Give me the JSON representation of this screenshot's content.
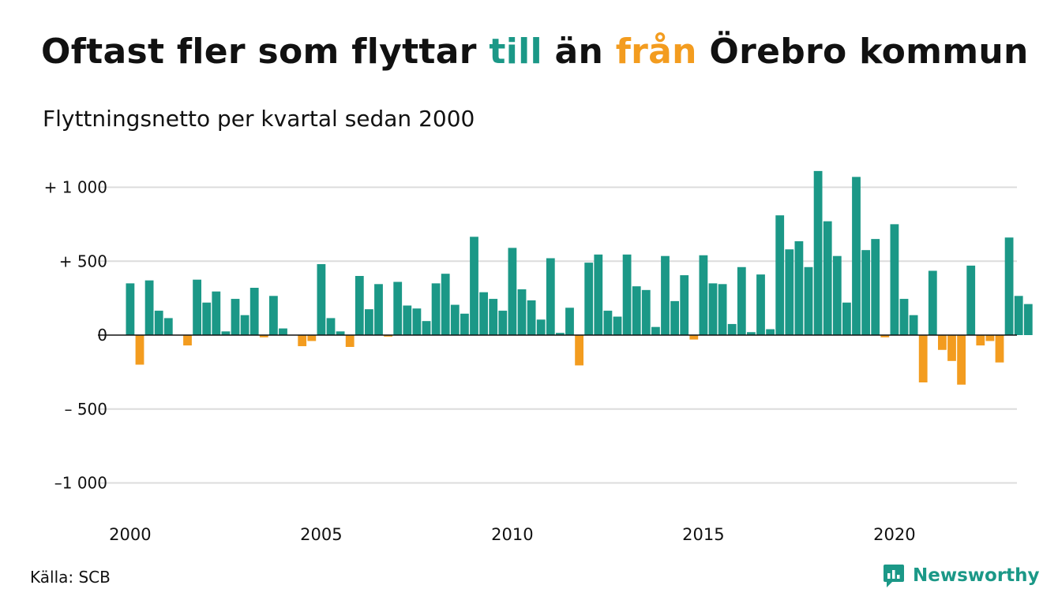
{
  "title": {
    "part1": "Oftast fler som flyttar ",
    "highlight_in": "till",
    "part2": " än ",
    "highlight_out": "från",
    "part3": " Örebro kommun"
  },
  "subtitle": "Flyttningsnetto per kvartal sedan 2000",
  "source": "Källa: SCB",
  "brand": "Newsworthy",
  "colors": {
    "positive": "#1b9887",
    "negative": "#f39c1f",
    "grid": "#dcdcdc",
    "axis": "#111111",
    "text": "#111111"
  },
  "icons": {
    "logo": "chart-bubble-icon"
  },
  "chart_data": {
    "type": "bar",
    "title": "",
    "xlabel": "",
    "ylabel": "",
    "ylim": [
      -1100,
      1150
    ],
    "x_ticks": [
      "2000",
      "2005",
      "2010",
      "2015",
      "2020"
    ],
    "y_ticks": [
      {
        "value": 1000,
        "label": "+ 1 000"
      },
      {
        "value": 500,
        "label": "+   500"
      },
      {
        "value": 0,
        "label": "0"
      },
      {
        "value": -500,
        "label": "–  500"
      },
      {
        "value": -1000,
        "label": "–1 000"
      }
    ],
    "grid": true,
    "legend": "none",
    "start": "2000 Q1",
    "categories": [
      "2000 Q1",
      "2000 Q2",
      "2000 Q3",
      "2000 Q4",
      "2001 Q1",
      "2001 Q2",
      "2001 Q3",
      "2001 Q4",
      "2002 Q1",
      "2002 Q2",
      "2002 Q3",
      "2002 Q4",
      "2003 Q1",
      "2003 Q2",
      "2003 Q3",
      "2003 Q4",
      "2004 Q1",
      "2004 Q2",
      "2004 Q3",
      "2004 Q4",
      "2005 Q1",
      "2005 Q2",
      "2005 Q3",
      "2005 Q4",
      "2006 Q1",
      "2006 Q2",
      "2006 Q3",
      "2006 Q4",
      "2007 Q1",
      "2007 Q2",
      "2007 Q3",
      "2007 Q4",
      "2008 Q1",
      "2008 Q2",
      "2008 Q3",
      "2008 Q4",
      "2009 Q1",
      "2009 Q2",
      "2009 Q3",
      "2009 Q4",
      "2010 Q1",
      "2010 Q2",
      "2010 Q3",
      "2010 Q4",
      "2011 Q1",
      "2011 Q2",
      "2011 Q3",
      "2011 Q4",
      "2012 Q1",
      "2012 Q2",
      "2012 Q3",
      "2012 Q4",
      "2013 Q1",
      "2013 Q2",
      "2013 Q3",
      "2013 Q4",
      "2014 Q1",
      "2014 Q2",
      "2014 Q3",
      "2014 Q4",
      "2015 Q1",
      "2015 Q2",
      "2015 Q3",
      "2015 Q4",
      "2016 Q1",
      "2016 Q2",
      "2016 Q3",
      "2016 Q4",
      "2017 Q1",
      "2017 Q2",
      "2017 Q3",
      "2017 Q4",
      "2018 Q1",
      "2018 Q2",
      "2018 Q3",
      "2018 Q4",
      "2019 Q1",
      "2019 Q2",
      "2019 Q3",
      "2019 Q4",
      "2020 Q1",
      "2020 Q2",
      "2020 Q3",
      "2020 Q4",
      "2021 Q1",
      "2021 Q2",
      "2021 Q3",
      "2021 Q4",
      "2022 Q1",
      "2022 Q2",
      "2022 Q3",
      "2022 Q4",
      "2023 Q1",
      "2023 Q2",
      "2023 Q3"
    ],
    "values": [
      350,
      -200,
      370,
      165,
      115,
      0,
      -70,
      375,
      220,
      295,
      25,
      245,
      135,
      320,
      -15,
      265,
      45,
      0,
      -75,
      -40,
      480,
      115,
      25,
      -80,
      400,
      175,
      345,
      -10,
      360,
      200,
      180,
      95,
      350,
      415,
      205,
      145,
      665,
      290,
      245,
      165,
      590,
      310,
      235,
      105,
      520,
      15,
      185,
      -205,
      490,
      545,
      165,
      125,
      545,
      330,
      305,
      55,
      535,
      230,
      405,
      -30,
      540,
      350,
      345,
      75,
      460,
      20,
      410,
      40,
      810,
      580,
      635,
      460,
      1110,
      770,
      535,
      220,
      1070,
      575,
      650,
      -15,
      750,
      245,
      135,
      -320,
      435,
      -100,
      -175,
      -335,
      470,
      -70,
      -40,
      -185,
      660,
      265,
      210
    ]
  }
}
